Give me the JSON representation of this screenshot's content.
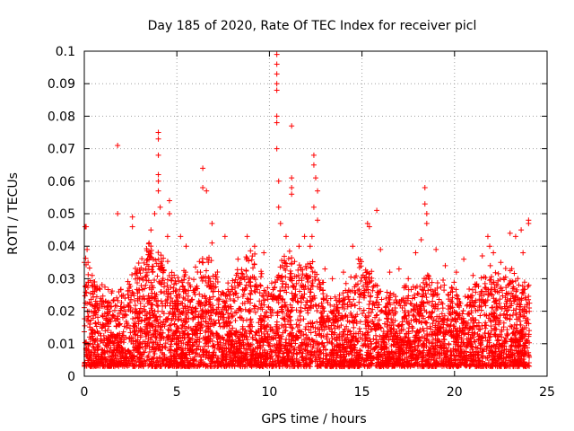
{
  "chart_data": {
    "type": "scatter",
    "title": "Day 185 of 2020, Rate Of TEC Index for receiver picl",
    "xlabel": "GPS time / hours",
    "ylabel": "ROTI / TECUs",
    "xlim": [
      0,
      25
    ],
    "ylim": [
      0,
      0.1
    ],
    "xticks": [
      0,
      5,
      10,
      15,
      20,
      25
    ],
    "xtick_labels": [
      "0",
      "5",
      "10",
      "15",
      "20",
      "25"
    ],
    "yticks": [
      0,
      0.01,
      0.02,
      0.03,
      0.04,
      0.05,
      0.06,
      0.07,
      0.08,
      0.09,
      0.1
    ],
    "ytick_labels": [
      "0",
      "0.01",
      "0.02",
      "0.03",
      "0.04",
      "0.05",
      "0.06",
      "0.07",
      "0.08",
      "0.09",
      "0.1"
    ],
    "grid": true,
    "marker": "plus",
    "color": "#ff0000",
    "series": [
      {
        "name": "ROTI",
        "sample_points": [
          [
            0.0,
            0.035
          ],
          [
            0.05,
            0.046
          ],
          [
            0.1,
            0.046
          ],
          [
            0.15,
            0.039
          ],
          [
            0.2,
            0.035
          ],
          [
            1.8,
            0.071
          ],
          [
            1.8,
            0.05
          ],
          [
            2.6,
            0.049
          ],
          [
            2.6,
            0.046
          ],
          [
            3.5,
            0.041
          ],
          [
            3.6,
            0.045
          ],
          [
            3.8,
            0.05
          ],
          [
            4.0,
            0.075
          ],
          [
            4.0,
            0.073
          ],
          [
            4.0,
            0.068
          ],
          [
            4.0,
            0.062
          ],
          [
            4.0,
            0.06
          ],
          [
            4.0,
            0.057
          ],
          [
            4.1,
            0.052
          ],
          [
            4.6,
            0.054
          ],
          [
            4.6,
            0.05
          ],
          [
            4.5,
            0.043
          ],
          [
            5.2,
            0.043
          ],
          [
            5.5,
            0.04
          ],
          [
            6.4,
            0.064
          ],
          [
            6.4,
            0.058
          ],
          [
            6.6,
            0.057
          ],
          [
            6.9,
            0.047
          ],
          [
            6.9,
            0.041
          ],
          [
            7.6,
            0.043
          ],
          [
            8.3,
            0.036
          ],
          [
            8.8,
            0.043
          ],
          [
            9.2,
            0.04
          ],
          [
            9.7,
            0.038
          ],
          [
            10.4,
            0.099
          ],
          [
            10.4,
            0.096
          ],
          [
            10.4,
            0.093
          ],
          [
            10.4,
            0.09
          ],
          [
            10.4,
            0.088
          ],
          [
            10.4,
            0.08
          ],
          [
            10.4,
            0.078
          ],
          [
            10.4,
            0.07
          ],
          [
            10.5,
            0.06
          ],
          [
            10.5,
            0.052
          ],
          [
            10.6,
            0.047
          ],
          [
            10.9,
            0.043
          ],
          [
            11.2,
            0.077
          ],
          [
            11.2,
            0.061
          ],
          [
            11.2,
            0.058
          ],
          [
            11.2,
            0.056
          ],
          [
            11.6,
            0.04
          ],
          [
            11.9,
            0.043
          ],
          [
            12.2,
            0.04
          ],
          [
            12.4,
            0.068
          ],
          [
            12.4,
            0.065
          ],
          [
            12.5,
            0.061
          ],
          [
            12.6,
            0.057
          ],
          [
            12.4,
            0.052
          ],
          [
            12.6,
            0.048
          ],
          [
            12.3,
            0.043
          ],
          [
            13.0,
            0.033
          ],
          [
            13.4,
            0.03
          ],
          [
            14.0,
            0.032
          ],
          [
            14.5,
            0.04
          ],
          [
            14.8,
            0.036
          ],
          [
            15.3,
            0.047
          ],
          [
            15.4,
            0.046
          ],
          [
            15.8,
            0.051
          ],
          [
            16.0,
            0.039
          ],
          [
            16.5,
            0.032
          ],
          [
            17.0,
            0.033
          ],
          [
            17.5,
            0.03
          ],
          [
            17.9,
            0.038
          ],
          [
            18.4,
            0.058
          ],
          [
            18.4,
            0.053
          ],
          [
            18.5,
            0.05
          ],
          [
            18.5,
            0.047
          ],
          [
            18.2,
            0.042
          ],
          [
            19.0,
            0.039
          ],
          [
            19.5,
            0.034
          ],
          [
            20.1,
            0.032
          ],
          [
            20.5,
            0.036
          ],
          [
            21.0,
            0.031
          ],
          [
            21.5,
            0.037
          ],
          [
            21.8,
            0.043
          ],
          [
            21.9,
            0.04
          ],
          [
            22.1,
            0.038
          ],
          [
            22.5,
            0.035
          ],
          [
            23.0,
            0.044
          ],
          [
            23.3,
            0.043
          ],
          [
            23.6,
            0.045
          ],
          [
            23.7,
            0.038
          ],
          [
            24.0,
            0.048
          ],
          [
            24.0,
            0.047
          ]
        ]
      }
    ]
  }
}
